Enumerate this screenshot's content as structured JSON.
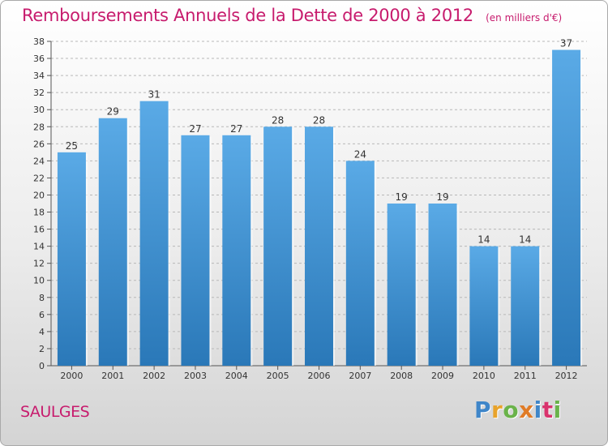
{
  "header": {
    "title": "Remboursements Annuels de la Dette de 2000 à 2012",
    "subtitle": "(en milliers d'€)"
  },
  "footer": {
    "commune": "SAULGES",
    "logo_letters": [
      "P",
      "r",
      "o",
      "x",
      "i",
      "t",
      "i"
    ]
  },
  "colors": {
    "accent": "#c71b6d",
    "bar_top": "#5aaae6",
    "bar_bottom": "#2a78b8",
    "grid": "#b8b8b8"
  },
  "chart_data": {
    "type": "bar",
    "title": "Remboursements Annuels de la Dette de 2000 à 2012",
    "subtitle": "(en milliers d'€)",
    "categories": [
      "2000",
      "2001",
      "2002",
      "2003",
      "2004",
      "2005",
      "2006",
      "2007",
      "2008",
      "2009",
      "2010",
      "2011",
      "2012"
    ],
    "values": [
      25,
      29,
      31,
      27,
      27,
      28,
      28,
      24,
      19,
      19,
      14,
      14,
      37
    ],
    "ylim": [
      0,
      38
    ],
    "yticks": [
      0,
      2,
      4,
      6,
      8,
      10,
      12,
      14,
      16,
      18,
      20,
      22,
      24,
      26,
      28,
      30,
      32,
      34,
      36,
      38
    ],
    "grid": "horizontal dashed",
    "legend": "none"
  }
}
